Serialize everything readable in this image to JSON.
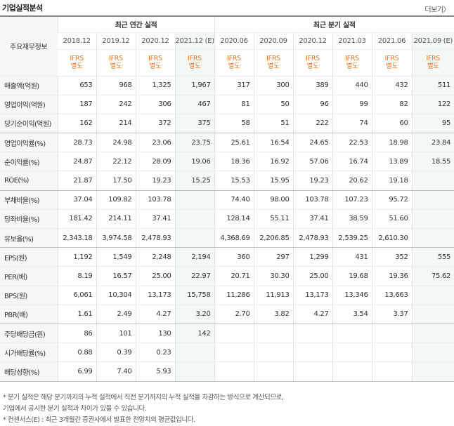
{
  "header": {
    "title": "기업실적분석",
    "more_label": "더보기"
  },
  "table": {
    "row_header_label": "주요재무정보",
    "annual_group_label": "최근 연간 실적",
    "quarter_group_label": "최근 분기 실적",
    "periods": [
      "2018.12",
      "2019.12",
      "2020.12",
      "2021.12 (E)",
      "2020.06",
      "2020.09",
      "2020.12",
      "2021.03",
      "2021.06",
      "2021.09 (E)"
    ],
    "ifrs_line1": "IFRS",
    "ifrs_line2": "별도",
    "rows": [
      {
        "label": "매출액(억원)",
        "values": [
          "653",
          "968",
          "1,325",
          "1,967",
          "317",
          "300",
          "389",
          "440",
          "432",
          "511"
        ]
      },
      {
        "label": "영업이익(억원)",
        "values": [
          "187",
          "242",
          "306",
          "467",
          "81",
          "50",
          "96",
          "99",
          "82",
          "122"
        ]
      },
      {
        "label": "당기순이익(억원)",
        "values": [
          "162",
          "214",
          "372",
          "375",
          "58",
          "51",
          "222",
          "74",
          "60",
          "95"
        ]
      },
      {
        "label": "영업이익률(%)",
        "values": [
          "28.73",
          "24.98",
          "23.06",
          "23.75",
          "25.61",
          "16.54",
          "24.65",
          "22.53",
          "18.98",
          "23.84"
        ]
      },
      {
        "label": "순이익률(%)",
        "values": [
          "24.87",
          "22.12",
          "28.09",
          "19.06",
          "18.36",
          "16.92",
          "57.06",
          "16.74",
          "13.89",
          "18.55"
        ]
      },
      {
        "label": "ROE(%)",
        "values": [
          "21.87",
          "17.50",
          "19.23",
          "15.25",
          "15.53",
          "15.95",
          "19.23",
          "20.62",
          "19.18",
          ""
        ]
      },
      {
        "label": "부채비율(%)",
        "values": [
          "37.04",
          "109.82",
          "103.78",
          "",
          "74.40",
          "98.00",
          "103.78",
          "107.23",
          "95.72",
          ""
        ]
      },
      {
        "label": "당좌비율(%)",
        "values": [
          "181.42",
          "214.11",
          "37.41",
          "",
          "128.14",
          "55.11",
          "37.41",
          "38.59",
          "51.60",
          ""
        ]
      },
      {
        "label": "유보율(%)",
        "values": [
          "2,343.18",
          "3,974.58",
          "2,478.93",
          "",
          "4,368.69",
          "2,206.85",
          "2,478.93",
          "2,539.25",
          "2,610.30",
          ""
        ]
      },
      {
        "label": "EPS(원)",
        "values": [
          "1,192",
          "1,549",
          "2,248",
          "2,194",
          "360",
          "297",
          "1,299",
          "431",
          "352",
          "555"
        ]
      },
      {
        "label": "PER(배)",
        "values": [
          "8.19",
          "16.57",
          "25.00",
          "22.97",
          "20.71",
          "30.30",
          "25.00",
          "19.68",
          "19.36",
          "75.62"
        ]
      },
      {
        "label": "BPS(원)",
        "values": [
          "6,061",
          "10,304",
          "13,173",
          "15,758",
          "11,286",
          "11,913",
          "13,173",
          "13,346",
          "13,663",
          ""
        ]
      },
      {
        "label": "PBR(배)",
        "values": [
          "1.61",
          "2.49",
          "4.27",
          "3.20",
          "2.70",
          "3.82",
          "4.27",
          "3.54",
          "3.37",
          ""
        ]
      },
      {
        "label": "주당배당금(원)",
        "values": [
          "86",
          "101",
          "130",
          "142",
          "",
          "",
          "",
          "",
          "",
          ""
        ]
      },
      {
        "label": "시가배당률(%)",
        "values": [
          "0.88",
          "0.39",
          "0.23",
          "",
          "",
          "",
          "",
          "",
          "",
          ""
        ]
      },
      {
        "label": "배당성향(%)",
        "values": [
          "6.99",
          "7.40",
          "5.93",
          "",
          "",
          "",
          "",
          "",
          "",
          ""
        ]
      }
    ]
  },
  "notes": [
    "* 분기 실적은 해당 분기까지의 누적 실적에서 직전 분기까지의 누적 실적을 차감하는 방식으로 계산되므로,",
    "   기업에서 공시한 분기 실적과 차이가 있을 수 있습니다.",
    "* 컨센서스(E) : 최근 3개월간 증권사에서 발표한 전망치의 평균값입니다."
  ],
  "colors": {
    "ifrs_link": "#e8792b",
    "estimate_bg": "#f3f8f4",
    "label_bg": "#f5f6f8"
  }
}
